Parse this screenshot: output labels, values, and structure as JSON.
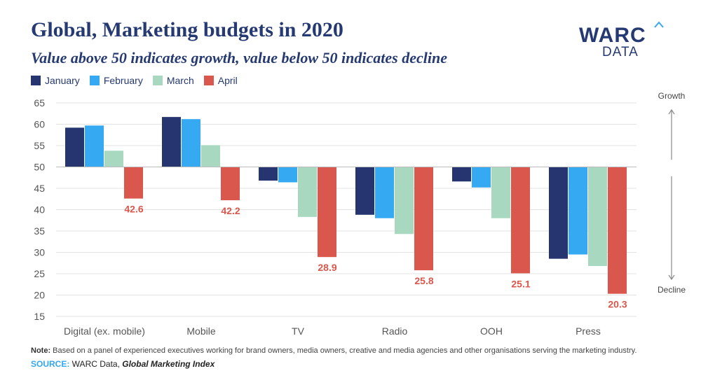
{
  "title": "Global, Marketing budgets in 2020",
  "subtitle": "Value above 50 indicates growth, value below 50 indicates decline",
  "logo": {
    "main": "WARC",
    "sub": "DATA"
  },
  "growth_label": "Growth",
  "decline_label": "Decline",
  "note_label": "Note:",
  "note_text": " Based on a panel of experienced executives working for brand owners, media owners, creative and media agencies and other organisations serving the marketing industry.",
  "source_label": "SOURCE:",
  "source_pre": " WARC Data, ",
  "source_name": "Global Marketing Index",
  "colors": {
    "January": "#263470",
    "February": "#35a9f2",
    "March": "#a8d8c0",
    "April": "#d9574c"
  },
  "chart_data": {
    "type": "bar",
    "baseline": 50,
    "ylim": [
      15,
      65
    ],
    "yticks": [
      15,
      20,
      25,
      30,
      35,
      40,
      45,
      50,
      55,
      60,
      65
    ],
    "grid": "horizontal",
    "legend": "top-left",
    "categories": [
      "Digital (ex. mobile)",
      "Mobile",
      "TV",
      "Radio",
      "OOH",
      "Press"
    ],
    "series": [
      {
        "name": "January",
        "values": [
          59.2,
          61.7,
          46.8,
          38.8,
          46.6,
          28.5
        ]
      },
      {
        "name": "February",
        "values": [
          59.7,
          61.2,
          46.4,
          38.0,
          45.2,
          29.5
        ]
      },
      {
        "name": "March",
        "values": [
          53.8,
          55.1,
          38.3,
          34.3,
          38.0,
          26.8
        ]
      },
      {
        "name": "April",
        "values": [
          42.6,
          42.2,
          28.9,
          25.8,
          25.1,
          20.3
        ]
      }
    ],
    "data_labels": {
      "series": "April",
      "values": [
        "42.6",
        "42.2",
        "28.9",
        "25.8",
        "25.1",
        "20.3"
      ]
    }
  }
}
